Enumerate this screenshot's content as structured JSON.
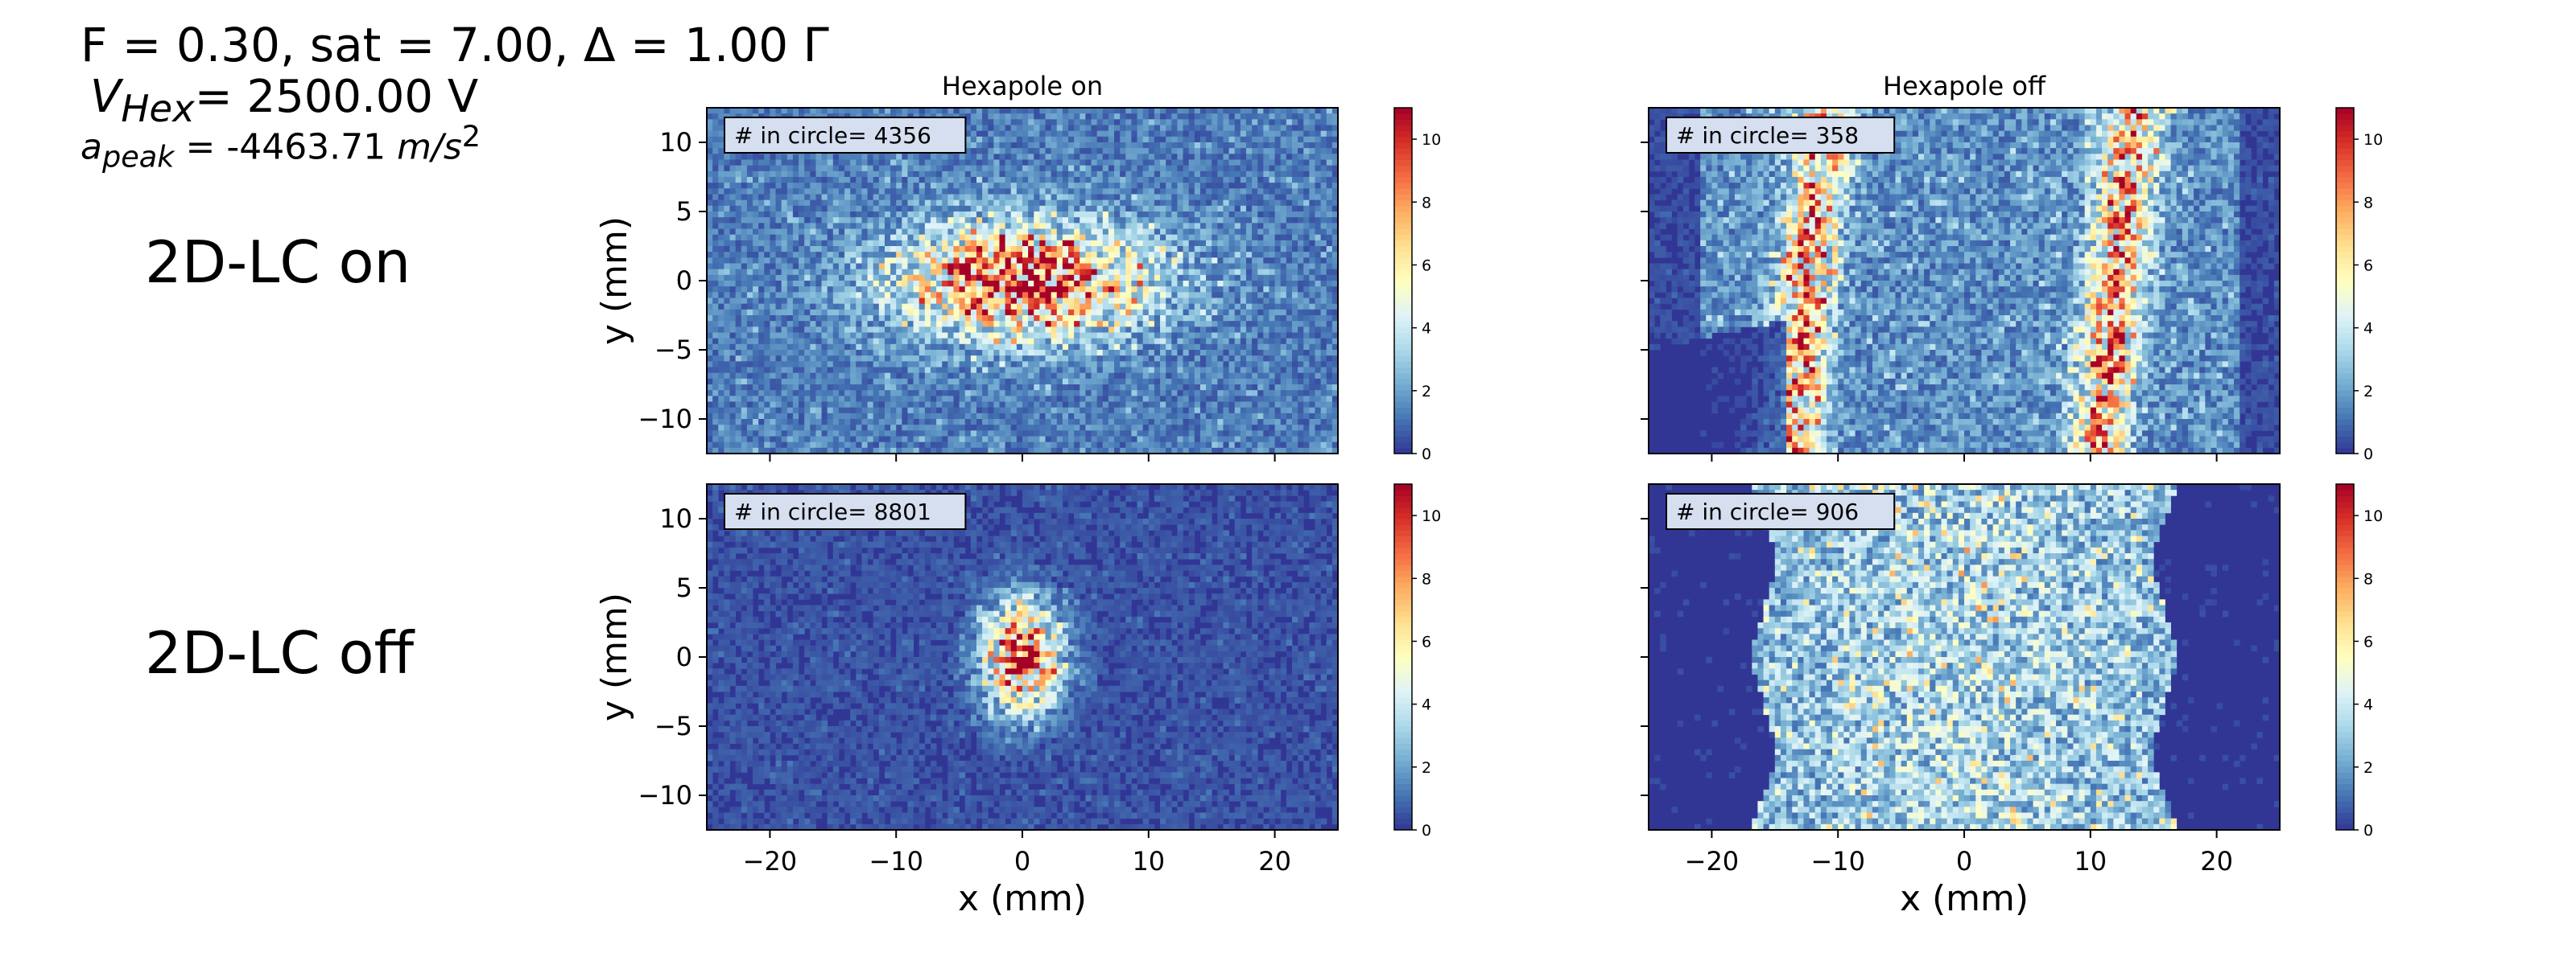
{
  "header": {
    "line1": "F = 0.30, sat = 7.00, Δ = 1.00 Γ",
    "line2_symbol": "V",
    "line2_sub": "Hex",
    "line2_rest": "= 2500.00 V",
    "line3_symbol": "a",
    "line3_sub": "peak",
    "line3_mid": " = -4463.71 ",
    "line3_unit": "m/s",
    "line3_exp": "2"
  },
  "row_labels": [
    "2D-LC on",
    "2D-LC off"
  ],
  "chart_data": [
    {
      "type": "heatmap",
      "title": "Hexapole on",
      "xlabel": "",
      "ylabel": "y (mm)",
      "xlim": [
        -25,
        25
      ],
      "ylim": [
        -12.5,
        12.5
      ],
      "xticks": [
        -20,
        -10,
        0,
        10,
        20
      ],
      "yticks": [
        -10,
        -5,
        0,
        5,
        10
      ],
      "colorbar": {
        "range": [
          0,
          11
        ],
        "ticks": [
          0,
          2,
          4,
          6,
          8,
          10
        ],
        "colormap": "RdYlBu_r"
      },
      "annotation": "# in circle= 4356",
      "distribution": {
        "shape": "elongated-cluster",
        "center_x": 0,
        "center_y": 0,
        "sigma_x": 7,
        "sigma_y": 2.8,
        "peak_density": 7.5,
        "background_density": 1.2
      }
    },
    {
      "type": "heatmap",
      "title": "Hexapole off",
      "xlabel": "",
      "ylabel": "",
      "xlim": [
        -25,
        25
      ],
      "ylim": [
        -12.5,
        12.5
      ],
      "xticks": [
        -20,
        -10,
        0,
        10,
        20
      ],
      "yticks": [
        -10,
        -5,
        0,
        5,
        10
      ],
      "colorbar": {
        "range": [
          0,
          11
        ],
        "ticks": [
          0,
          2,
          4,
          6,
          8,
          10
        ],
        "colormap": "RdYlBu_r"
      },
      "annotation": "# in circle= 358",
      "distribution": {
        "shape": "two-vertical-bands",
        "band_x": [
          -12.5,
          12
        ],
        "band_width": 1.6,
        "peak_density": 5.5,
        "background_density": 1.6,
        "empty_corner_bottom_left": true
      }
    },
    {
      "type": "heatmap",
      "title": "",
      "xlabel": "x (mm)",
      "ylabel": "y (mm)",
      "xlim": [
        -25,
        25
      ],
      "ylim": [
        -12.5,
        12.5
      ],
      "xticks": [
        -20,
        -10,
        0,
        10,
        20
      ],
      "yticks": [
        -10,
        -5,
        0,
        5,
        10
      ],
      "colorbar": {
        "range": [
          0,
          11
        ],
        "ticks": [
          0,
          2,
          4,
          6,
          8,
          10
        ],
        "colormap": "RdYlBu_r"
      },
      "annotation": "# in circle= 8801",
      "distribution": {
        "shape": "compact-spot",
        "center_x": 0,
        "center_y": 0,
        "sigma_x": 2.0,
        "sigma_y": 2.6,
        "peak_density": 9,
        "background_density": 0.5
      }
    },
    {
      "type": "heatmap",
      "title": "",
      "xlabel": "x (mm)",
      "ylabel": "",
      "xlim": [
        -25,
        25
      ],
      "ylim": [
        -12.5,
        12.5
      ],
      "xticks": [
        -20,
        -10,
        0,
        10,
        20
      ],
      "yticks": [
        -10,
        -5,
        0,
        5,
        10
      ],
      "colorbar": {
        "range": [
          0,
          11
        ],
        "ticks": [
          0,
          2,
          4,
          6,
          8,
          10
        ],
        "colormap": "RdYlBu_r"
      },
      "annotation": "# in circle= 906",
      "distribution": {
        "shape": "broad-spread",
        "center_x": 0,
        "center_y": 0,
        "half_width": 17,
        "peak_density": 3.2,
        "background_density": 0.2
      }
    }
  ]
}
